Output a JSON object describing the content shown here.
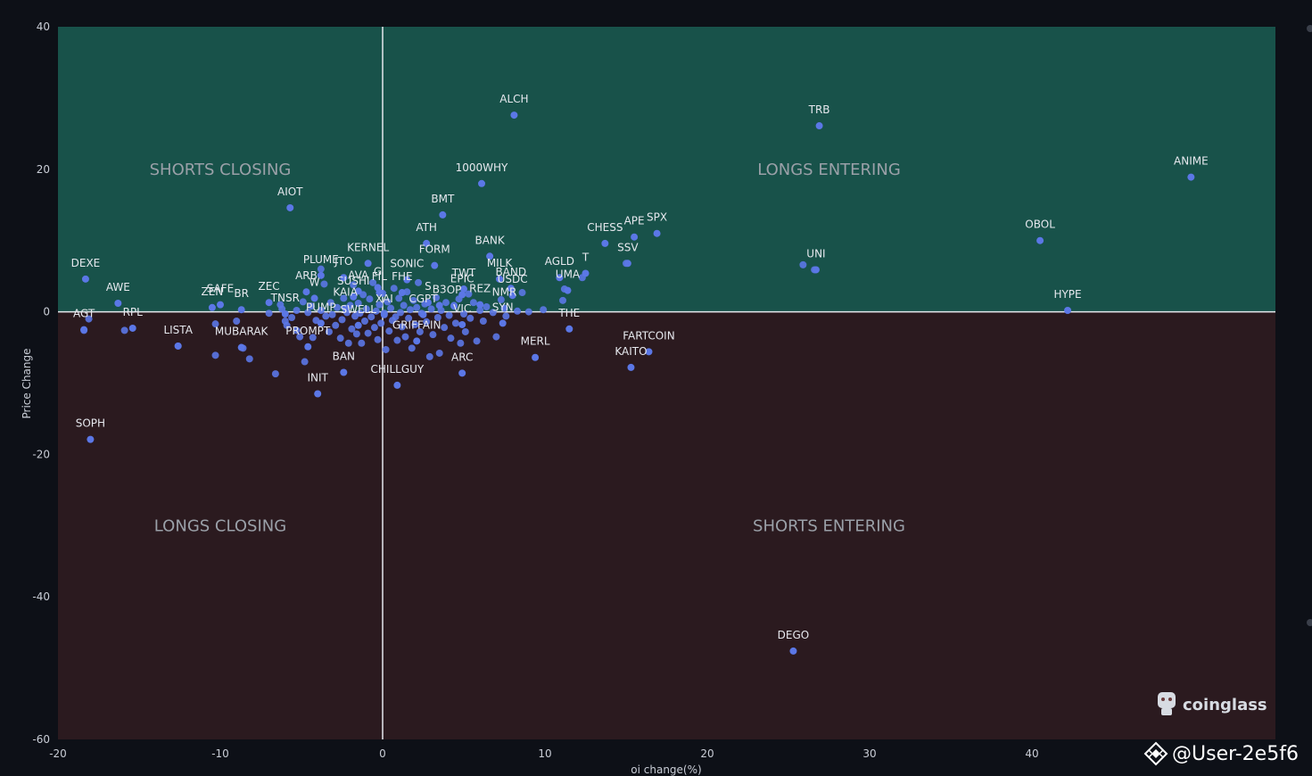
{
  "chart_data": {
    "type": "scatter",
    "xlabel": "oi change(%)",
    "ylabel": "Price Change",
    "xlim": [
      -20,
      55
    ],
    "ylim": [
      -60,
      40
    ],
    "x_ticks": [
      -20,
      -10,
      0,
      10,
      20,
      30,
      40
    ],
    "y_ticks": [
      40,
      20,
      0,
      -20,
      -40,
      -60
    ],
    "quadrant_colors": {
      "top": "#18524a",
      "bottom": "#2b1a1f"
    },
    "quadrants": [
      {
        "label": "SHORTS CLOSING",
        "x": -10,
        "y": 20
      },
      {
        "label": "LONGS ENTERING",
        "x": 27.5,
        "y": 20
      },
      {
        "label": "LONGS CLOSING",
        "x": -10,
        "y": -30
      },
      {
        "label": "SHORTS ENTERING",
        "x": 27.5,
        "y": -30
      }
    ],
    "labeled_points": [
      {
        "name": "ALCH",
        "x": 8.1,
        "y": 27.6
      },
      {
        "name": "TRB",
        "x": 26.9,
        "y": 26.1
      },
      {
        "name": "ANIME",
        "x": 49.8,
        "y": 18.9
      },
      {
        "name": "1000WHY",
        "x": 6.1,
        "y": 18.0
      },
      {
        "name": "AIOT",
        "x": -5.7,
        "y": 14.6
      },
      {
        "name": "BMT",
        "x": 3.7,
        "y": 13.6
      },
      {
        "name": "ATH",
        "x": 2.7,
        "y": 9.6
      },
      {
        "name": "OBOL",
        "x": 40.5,
        "y": 10.0
      },
      {
        "name": "SPX",
        "x": 16.9,
        "y": 11.0
      },
      {
        "name": "APE",
        "x": 15.5,
        "y": 10.5
      },
      {
        "name": "CHESS",
        "x": 13.7,
        "y": 9.6
      },
      {
        "name": "SSV",
        "x": 15.1,
        "y": 6.8
      },
      {
        "name": "BANK",
        "x": 6.6,
        "y": 7.8
      },
      {
        "name": "UNI",
        "x": 26.7,
        "y": 5.9
      },
      {
        "name": "KERNEL",
        "x": -0.9,
        "y": 6.8
      },
      {
        "name": "JTO",
        "x": -2.4,
        "y": 4.8
      },
      {
        "name": "FORM",
        "x": 3.2,
        "y": 6.5
      },
      {
        "name": "DEXE",
        "x": -18.3,
        "y": 4.6
      },
      {
        "name": "PLUME",
        "x": -3.8,
        "y": 5.1
      },
      {
        "name": "AGLD",
        "x": 10.9,
        "y": 4.8
      },
      {
        "name": "T",
        "x": 12.5,
        "y": 5.4
      },
      {
        "name": "MILK",
        "x": 7.2,
        "y": 4.6
      },
      {
        "name": "G",
        "x": -0.3,
        "y": 3.4
      },
      {
        "name": "SONIC",
        "x": 1.5,
        "y": 4.5
      },
      {
        "name": "TWT",
        "x": 5.0,
        "y": 3.2
      },
      {
        "name": "BAND",
        "x": 7.9,
        "y": 3.3
      },
      {
        "name": "UMA",
        "x": 11.4,
        "y": 3.0
      },
      {
        "name": "SAFE",
        "x": -10.0,
        "y": 1.0
      },
      {
        "name": "AWE",
        "x": -16.3,
        "y": 1.2
      },
      {
        "name": "ARB",
        "x": -4.7,
        "y": 2.8
      },
      {
        "name": "AVA",
        "x": -1.5,
        "y": 2.9
      },
      {
        "name": "EPIC",
        "x": 4.9,
        "y": 2.4
      },
      {
        "name": "FIL",
        "x": -0.2,
        "y": 2.7
      },
      {
        "name": "FHE",
        "x": 1.2,
        "y": 2.7
      },
      {
        "name": "USDC",
        "x": 8.0,
        "y": 2.3
      },
      {
        "name": "HYPE",
        "x": 42.2,
        "y": 0.2
      },
      {
        "name": "AGT",
        "x": -18.4,
        "y": -2.5
      },
      {
        "name": "SUSHI",
        "x": -1.8,
        "y": 2.1
      },
      {
        "name": "W",
        "x": -4.2,
        "y": 1.9
      },
      {
        "name": "ZEC",
        "x": -7.0,
        "y": 1.3
      },
      {
        "name": "REZ",
        "x": 6.0,
        "y": 1.0
      },
      {
        "name": "S",
        "x": 2.8,
        "y": 1.3
      },
      {
        "name": "B3",
        "x": 3.5,
        "y": 0.9
      },
      {
        "name": "OP",
        "x": 4.4,
        "y": 0.8
      },
      {
        "name": "ZEN",
        "x": -10.5,
        "y": 0.6
      },
      {
        "name": "RPL",
        "x": -15.4,
        "y": -2.3
      },
      {
        "name": "BR",
        "x": -8.7,
        "y": 0.3
      },
      {
        "name": "KAIA",
        "x": -2.3,
        "y": 0.5
      },
      {
        "name": "NMR",
        "x": 7.5,
        "y": 0.5
      },
      {
        "name": "THE",
        "x": 11.5,
        "y": -2.4
      },
      {
        "name": "TNSR",
        "x": -6.0,
        "y": -0.3
      },
      {
        "name": "XAI",
        "x": 0.1,
        "y": -0.4
      },
      {
        "name": "CGPT",
        "x": 2.5,
        "y": -0.4
      },
      {
        "name": "SYN",
        "x": 7.4,
        "y": -1.6
      },
      {
        "name": "PUMP",
        "x": -3.8,
        "y": -1.6
      },
      {
        "name": "VIC",
        "x": 4.9,
        "y": -1.8
      },
      {
        "name": "SWELL",
        "x": -1.5,
        "y": -1.9
      },
      {
        "name": "LISTA",
        "x": -12.6,
        "y": -4.8
      },
      {
        "name": "MUBARAK",
        "x": -8.7,
        "y": -5.0
      },
      {
        "name": "FARTCOIN",
        "x": 16.4,
        "y": -5.6
      },
      {
        "name": "GRIFFAIN",
        "x": 2.1,
        "y": -4.1
      },
      {
        "name": "PROMPT",
        "x": -4.6,
        "y": -4.9
      },
      {
        "name": "MERL",
        "x": 9.4,
        "y": -6.4
      },
      {
        "name": "KAITO",
        "x": 15.3,
        "y": -7.8
      },
      {
        "name": "BAN",
        "x": -2.4,
        "y": -8.5
      },
      {
        "name": "ARC",
        "x": 4.9,
        "y": -8.6
      },
      {
        "name": "CHILLGUY",
        "x": 0.9,
        "y": -10.3
      },
      {
        "name": "INIT",
        "x": -4.0,
        "y": -11.5
      },
      {
        "name": "SOPH",
        "x": -18.0,
        "y": -17.9
      },
      {
        "name": "DEGO",
        "x": 25.3,
        "y": -47.6
      }
    ],
    "unlabeled_points": [
      [
        -18.1,
        -1.0
      ],
      [
        -18.4,
        -2.6
      ],
      [
        -15.9,
        -2.6
      ],
      [
        -12.6,
        -4.8
      ],
      [
        -10.3,
        -1.7
      ],
      [
        -10.3,
        -6.1
      ],
      [
        -9.0,
        -1.3
      ],
      [
        -8.6,
        -5.1
      ],
      [
        -8.2,
        -6.6
      ],
      [
        -7.0,
        -0.2
      ],
      [
        -6.6,
        -8.7
      ],
      [
        -6.3,
        1.0
      ],
      [
        -6.2,
        0.4
      ],
      [
        -6.0,
        -1.3
      ],
      [
        -5.9,
        -1.9
      ],
      [
        -5.6,
        -0.8
      ],
      [
        -5.3,
        -2.6
      ],
      [
        -5.3,
        0.2
      ],
      [
        -5.1,
        -3.5
      ],
      [
        -4.9,
        1.4
      ],
      [
        -4.8,
        -7.0
      ],
      [
        -4.6,
        -0.1
      ],
      [
        -4.4,
        0.8
      ],
      [
        -4.3,
        -3.6
      ],
      [
        -4.1,
        -1.2
      ],
      [
        -3.8,
        6.0
      ],
      [
        -3.8,
        0.2
      ],
      [
        -3.6,
        3.9
      ],
      [
        -3.5,
        -0.6
      ],
      [
        -3.3,
        -2.8
      ],
      [
        -3.2,
        1.3
      ],
      [
        -3.1,
        -0.4
      ],
      [
        -2.9,
        -1.9
      ],
      [
        -2.8,
        0.6
      ],
      [
        -2.6,
        -3.7
      ],
      [
        -2.5,
        -1.1
      ],
      [
        -2.4,
        1.9
      ],
      [
        -2.2,
        -0.1
      ],
      [
        -2.1,
        -4.4
      ],
      [
        -2.0,
        0.9
      ],
      [
        -1.9,
        -2.4
      ],
      [
        -1.8,
        3.8
      ],
      [
        -1.7,
        -0.6
      ],
      [
        -1.6,
        -3.1
      ],
      [
        -1.5,
        1.2
      ],
      [
        -1.4,
        -0.2
      ],
      [
        -1.3,
        -4.4
      ],
      [
        -1.2,
        2.4
      ],
      [
        -1.1,
        -1.3
      ],
      [
        -1.0,
        0.4
      ],
      [
        -0.9,
        -3.0
      ],
      [
        -0.8,
        1.8
      ],
      [
        -0.7,
        -0.7
      ],
      [
        -0.6,
        4.1
      ],
      [
        -0.5,
        -2.2
      ],
      [
        -0.4,
        0.1
      ],
      [
        -0.3,
        -3.9
      ],
      [
        -0.2,
        1.0
      ],
      [
        -0.1,
        -1.6
      ],
      [
        0.0,
        2.6
      ],
      [
        0.1,
        -0.2
      ],
      [
        0.2,
        -5.3
      ],
      [
        0.3,
        1.4
      ],
      [
        0.4,
        -2.7
      ],
      [
        0.5,
        0.5
      ],
      [
        0.6,
        -1.2
      ],
      [
        0.7,
        3.3
      ],
      [
        0.8,
        -0.7
      ],
      [
        0.9,
        -4.0
      ],
      [
        1.0,
        1.9
      ],
      [
        1.1,
        -0.1
      ],
      [
        1.2,
        -2.1
      ],
      [
        1.3,
        0.9
      ],
      [
        1.4,
        -3.5
      ],
      [
        1.5,
        2.8
      ],
      [
        1.6,
        -0.9
      ],
      [
        1.7,
        0.3
      ],
      [
        1.8,
        -5.1
      ],
      [
        1.9,
        1.6
      ],
      [
        2.0,
        -1.8
      ],
      [
        2.1,
        0.6
      ],
      [
        2.2,
        4.1
      ],
      [
        2.3,
        -2.8
      ],
      [
        2.4,
        -0.2
      ],
      [
        2.6,
        1.1
      ],
      [
        2.7,
        -1.4
      ],
      [
        2.9,
        -6.3
      ],
      [
        3.0,
        0.4
      ],
      [
        3.1,
        -3.2
      ],
      [
        3.3,
        2.0
      ],
      [
        3.4,
        -0.8
      ],
      [
        3.5,
        -5.8
      ],
      [
        3.6,
        0.2
      ],
      [
        3.8,
        -2.2
      ],
      [
        3.9,
        1.3
      ],
      [
        4.1,
        -0.5
      ],
      [
        4.2,
        -3.7
      ],
      [
        4.4,
        0.9
      ],
      [
        4.5,
        -1.6
      ],
      [
        4.7,
        1.8
      ],
      [
        4.8,
        -4.4
      ],
      [
        5.0,
        -0.3
      ],
      [
        5.1,
        -2.8
      ],
      [
        5.3,
        2.5
      ],
      [
        5.4,
        -0.9
      ],
      [
        5.6,
        1.3
      ],
      [
        5.8,
        -4.1
      ],
      [
        6.0,
        0.2
      ],
      [
        6.2,
        -1.3
      ],
      [
        6.4,
        0.7
      ],
      [
        6.8,
        -0.1
      ],
      [
        7.0,
        -3.5
      ],
      [
        7.3,
        1.7
      ],
      [
        7.6,
        -0.6
      ],
      [
        8.3,
        0.1
      ],
      [
        8.6,
        2.7
      ],
      [
        9.0,
        0.0
      ],
      [
        9.9,
        0.3
      ],
      [
        11.1,
        1.6
      ],
      [
        11.2,
        3.2
      ],
      [
        12.3,
        4.8
      ],
      [
        15.0,
        6.8
      ],
      [
        25.9,
        6.6
      ],
      [
        26.6,
        5.9
      ]
    ]
  },
  "branding": {
    "logo_text": "coinglass",
    "watermark": "@User-2e5f6"
  }
}
